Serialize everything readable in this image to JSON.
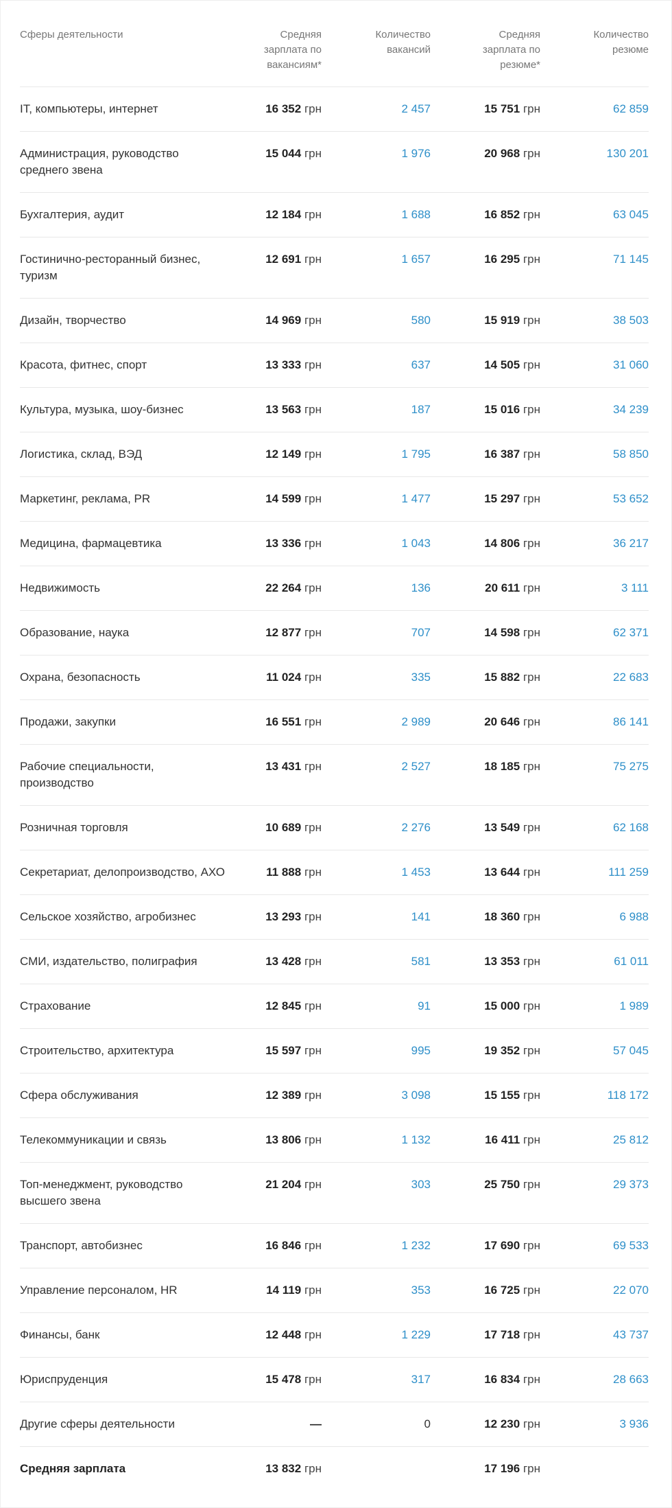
{
  "headers": {
    "sphere": "Сферы деятельности",
    "salary_vacancies": "Средняя зарплата по вакансиям*",
    "vacancy_count": "Количество вакансий",
    "salary_resumes": "Средняя зарплата по резюме*",
    "resume_count": "Количество резюме"
  },
  "currency": "грн",
  "rows": [
    {
      "name": "IT, компьютеры, интернет",
      "salary_vac": "16 352",
      "vacancies": "2 457",
      "salary_res": "15 751",
      "resumes": "62 859"
    },
    {
      "name": "Администрация, руководство среднего звена",
      "salary_vac": "15 044",
      "vacancies": "1 976",
      "salary_res": "20 968",
      "resumes": "130 201"
    },
    {
      "name": "Бухгалтерия, аудит",
      "salary_vac": "12 184",
      "vacancies": "1 688",
      "salary_res": "16 852",
      "resumes": "63 045"
    },
    {
      "name": "Гостинично-ресторанный бизнес, туризм",
      "salary_vac": "12 691",
      "vacancies": "1 657",
      "salary_res": "16 295",
      "resumes": "71 145"
    },
    {
      "name": "Дизайн, творчество",
      "salary_vac": "14 969",
      "vacancies": "580",
      "salary_res": "15 919",
      "resumes": "38 503"
    },
    {
      "name": "Красота, фитнес, спорт",
      "salary_vac": "13 333",
      "vacancies": "637",
      "salary_res": "14 505",
      "resumes": "31 060"
    },
    {
      "name": "Культура, музыка, шоу-бизнес",
      "salary_vac": "13 563",
      "vacancies": "187",
      "salary_res": "15 016",
      "resumes": "34 239"
    },
    {
      "name": "Логистика, склад, ВЭД",
      "salary_vac": "12 149",
      "vacancies": "1 795",
      "salary_res": "16 387",
      "resumes": "58 850"
    },
    {
      "name": "Маркетинг, реклама, PR",
      "salary_vac": "14 599",
      "vacancies": "1 477",
      "salary_res": "15 297",
      "resumes": "53 652"
    },
    {
      "name": "Медицина, фармацевтика",
      "salary_vac": "13 336",
      "vacancies": "1 043",
      "salary_res": "14 806",
      "resumes": "36 217"
    },
    {
      "name": "Недвижимость",
      "salary_vac": "22 264",
      "vacancies": "136",
      "salary_res": "20 611",
      "resumes": "3 111"
    },
    {
      "name": "Образование, наука",
      "salary_vac": "12 877",
      "vacancies": "707",
      "salary_res": "14 598",
      "resumes": "62 371"
    },
    {
      "name": "Охрана, безопасность",
      "salary_vac": "11 024",
      "vacancies": "335",
      "salary_res": "15 882",
      "resumes": "22 683"
    },
    {
      "name": "Продажи, закупки",
      "salary_vac": "16 551",
      "vacancies": "2 989",
      "salary_res": "20 646",
      "resumes": "86 141"
    },
    {
      "name": "Рабочие специальности, производство",
      "salary_vac": "13 431",
      "vacancies": "2 527",
      "salary_res": "18 185",
      "resumes": "75 275"
    },
    {
      "name": "Розничная торговля",
      "salary_vac": "10 689",
      "vacancies": "2 276",
      "salary_res": "13 549",
      "resumes": "62 168"
    },
    {
      "name": "Секретариат, делопроизводство, АХО",
      "salary_vac": "11 888",
      "vacancies": "1 453",
      "salary_res": "13 644",
      "resumes": "111 259"
    },
    {
      "name": "Сельское хозяйство, агробизнес",
      "salary_vac": "13 293",
      "vacancies": "141",
      "salary_res": "18 360",
      "resumes": "6 988"
    },
    {
      "name": "СМИ, издательство, полиграфия",
      "salary_vac": "13 428",
      "vacancies": "581",
      "salary_res": "13 353",
      "resumes": "61 011"
    },
    {
      "name": "Страхование",
      "salary_vac": "12 845",
      "vacancies": "91",
      "salary_res": "15 000",
      "resumes": "1 989"
    },
    {
      "name": "Строительство, архитектура",
      "salary_vac": "15 597",
      "vacancies": "995",
      "salary_res": "19 352",
      "resumes": "57 045"
    },
    {
      "name": "Сфера обслуживания",
      "salary_vac": "12 389",
      "vacancies": "3 098",
      "salary_res": "15 155",
      "resumes": "118 172"
    },
    {
      "name": "Телекоммуникации и связь",
      "salary_vac": "13 806",
      "vacancies": "1 132",
      "salary_res": "16 411",
      "resumes": "25 812"
    },
    {
      "name": "Топ-менеджмент, руководство высшего звена",
      "salary_vac": "21 204",
      "vacancies": "303",
      "salary_res": "25 750",
      "resumes": "29 373"
    },
    {
      "name": "Транспорт, автобизнес",
      "salary_vac": "16 846",
      "vacancies": "1 232",
      "salary_res": "17 690",
      "resumes": "69 533"
    },
    {
      "name": "Управление персоналом, HR",
      "salary_vac": "14 119",
      "vacancies": "353",
      "salary_res": "16 725",
      "resumes": "22 070"
    },
    {
      "name": "Финансы, банк",
      "salary_vac": "12 448",
      "vacancies": "1 229",
      "salary_res": "17 718",
      "resumes": "43 737"
    },
    {
      "name": "Юриспруденция",
      "salary_vac": "15 478",
      "vacancies": "317",
      "salary_res": "16 834",
      "resumes": "28 663"
    },
    {
      "name": "Другие сферы деятельности",
      "salary_vac": "—",
      "vacancies": "0",
      "salary_res": "12 230",
      "resumes": "3 936"
    }
  ],
  "total": {
    "name": "Средняя зарплата",
    "salary_vac": "13 832",
    "salary_res": "17 196"
  },
  "colors": {
    "link": "#2e8fc9",
    "text": "#333333",
    "header": "#777777",
    "divider": "#e8e8e8"
  }
}
